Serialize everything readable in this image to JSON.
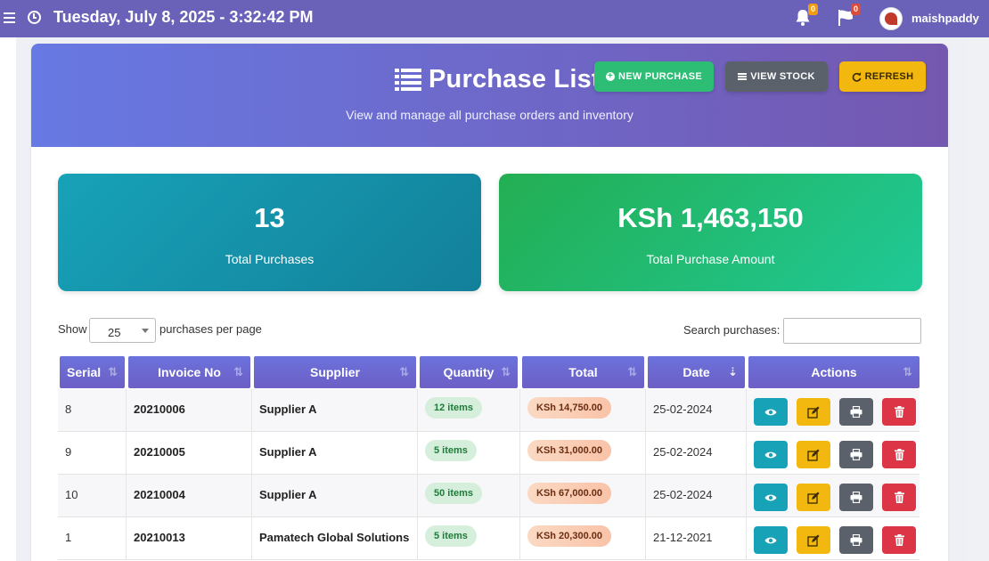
{
  "topbar": {
    "datetime": "Tuesday, July 8, 2025 - 3:32:42 PM",
    "notifications_count": "0",
    "flags_count": "0",
    "username": "maishpaddy"
  },
  "header": {
    "title": "Purchase List",
    "subtitle": "View and manage all purchase orders and inventory",
    "new_purchase_label": "NEW PURCHASE",
    "view_stock_label": "VIEW STOCK",
    "refresh_label": "REFRESH"
  },
  "stats": {
    "total_purchases_value": "13",
    "total_purchases_label": "Total Purchases",
    "total_amount_value": "KSh 1,463,150",
    "total_amount_label": "Total Purchase Amount"
  },
  "controls": {
    "show_label": "Show",
    "page_size": "25",
    "per_page_label": "purchases per page",
    "search_label": "Search purchases:",
    "search_value": ""
  },
  "table": {
    "headers": [
      "Serial",
      "Invoice No",
      "Supplier",
      "Quantity",
      "Total",
      "Date",
      "Actions"
    ],
    "rows": [
      {
        "serial": "8",
        "invoice": "20210006",
        "supplier": "Supplier A",
        "quantity": "12 items",
        "total": "KSh 14,750.00",
        "date": "25-02-2024"
      },
      {
        "serial": "9",
        "invoice": "20210005",
        "supplier": "Supplier A",
        "quantity": "5 items",
        "total": "KSh 31,000.00",
        "date": "25-02-2024"
      },
      {
        "serial": "10",
        "invoice": "20210004",
        "supplier": "Supplier A",
        "quantity": "50 items",
        "total": "KSh 67,000.00",
        "date": "25-02-2024"
      },
      {
        "serial": "1",
        "invoice": "20210013",
        "supplier": "Pamatech Global Solutions",
        "quantity": "5 items",
        "total": "KSh 20,300.00",
        "date": "21-12-2021"
      }
    ]
  },
  "colors": {
    "topbar": "#6a62b8",
    "header_start": "#6779e3",
    "header_end": "#7458b0",
    "new_purchase": "#2dbd75",
    "view_stock": "#5a616b",
    "refresh": "#f3b80f",
    "view_action": "#17a2b8",
    "edit_action": "#f3b80f",
    "print_action": "#5a616b",
    "delete_action": "#dc3545"
  },
  "icons": {
    "menu": "menu-icon",
    "clock": "clock-icon",
    "bell": "bell-icon",
    "flag": "flag-icon",
    "list": "list-icon",
    "plus": "plus-circle-icon",
    "refresh": "refresh-icon",
    "view": "eye-icon",
    "edit": "edit-icon",
    "print": "print-icon",
    "delete": "trash-icon",
    "sort": "sort-icon"
  }
}
